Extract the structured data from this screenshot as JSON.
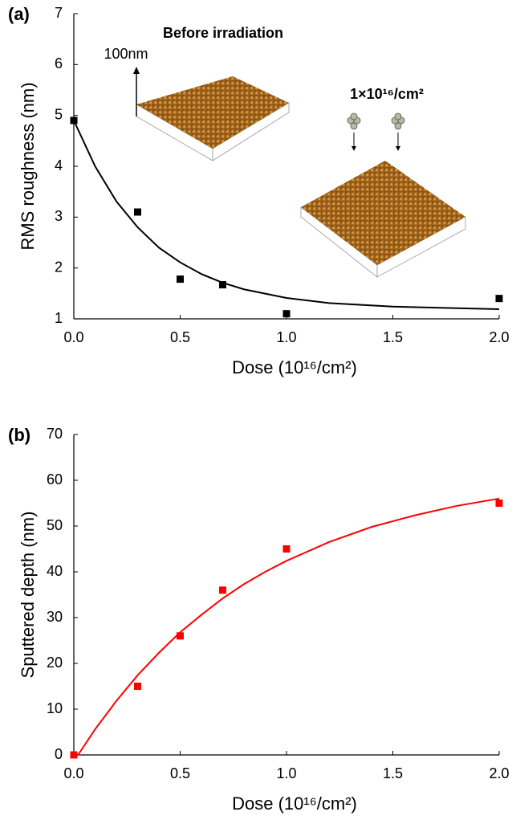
{
  "chart_data": [
    {
      "type": "scatter",
      "panel_label": "(a)",
      "x_label": "Dose (10¹⁶/cm²)",
      "y_label": "RMS roughness (nm)",
      "x": [
        0,
        0.3,
        0.5,
        0.7,
        1.0,
        2.0
      ],
      "values": [
        4.9,
        3.1,
        1.78,
        1.67,
        1.1,
        1.4
      ],
      "color": "#000000",
      "fit": {
        "type": "line",
        "color": "#000000",
        "x": [
          0,
          0.1,
          0.2,
          0.3,
          0.4,
          0.5,
          0.6,
          0.7,
          0.8,
          1.0,
          1.2,
          1.5,
          2.0
        ],
        "values": [
          4.9,
          4.0,
          3.31,
          2.8,
          2.4,
          2.11,
          1.88,
          1.71,
          1.58,
          1.41,
          1.31,
          1.24,
          1.19
        ]
      },
      "xlim": [
        0,
        2
      ],
      "ylim": [
        1,
        7
      ],
      "xticks": [
        {
          "value": 0,
          "label": "0.0"
        },
        0.5,
        {
          "value": 1,
          "label": "1.0"
        },
        1.5,
        {
          "value": 2,
          "label": "2.0"
        }
      ],
      "yticks": [
        1,
        2,
        3,
        4,
        5,
        6,
        7
      ],
      "annotations": [
        "Before irradiation",
        "100nm",
        "1×10¹⁶/cm²"
      ]
    },
    {
      "type": "scatter",
      "panel_label": "(b)",
      "x_label": "Dose (10¹⁶/cm²)",
      "y_label": "Sputtered depth (nm)",
      "x": [
        0,
        0.3,
        0.5,
        0.7,
        1.0,
        2.0
      ],
      "values": [
        0,
        15,
        26,
        36,
        45,
        55
      ],
      "color": "#ff0000",
      "fit": {
        "type": "line",
        "color": "#ff0000",
        "x": [
          0.02,
          0.1,
          0.2,
          0.3,
          0.4,
          0.5,
          0.6,
          0.7,
          0.8,
          0.9,
          1.0,
          1.2,
          1.4,
          1.6,
          1.8,
          2.0
        ],
        "values": [
          0,
          5.6,
          11.8,
          17.4,
          22.3,
          26.8,
          30.6,
          34.2,
          37.3,
          40.0,
          42.4,
          46.5,
          49.8,
          52.3,
          54.4,
          56.0
        ]
      },
      "xlim": [
        0,
        2
      ],
      "ylim": [
        0,
        70
      ],
      "xticks": [
        {
          "value": 0,
          "label": "0.0"
        },
        0.5,
        {
          "value": 1,
          "label": "1.0"
        },
        1.5,
        {
          "value": 2,
          "label": "2.0"
        }
      ],
      "yticks": [
        0,
        10,
        20,
        30,
        40,
        50,
        60,
        70
      ]
    }
  ]
}
